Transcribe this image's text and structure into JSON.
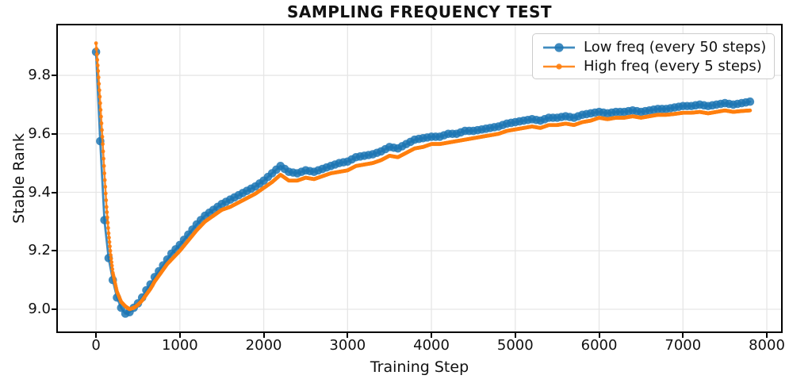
{
  "chart_data": {
    "type": "line",
    "title": "SAMPLING FREQUENCY TEST",
    "xlabel": "Training Step",
    "ylabel": "Stable Rank",
    "xlim": [
      -455,
      8170
    ],
    "ylim": [
      8.924,
      9.971
    ],
    "x_ticks": [
      0,
      1000,
      2000,
      3000,
      4000,
      5000,
      6000,
      7000,
      8000
    ],
    "x_tick_labels": [
      "0",
      "1000",
      "2000",
      "3000",
      "4000",
      "5000",
      "6000",
      "7000",
      "8000"
    ],
    "y_ticks": [
      9.0,
      9.2,
      9.4,
      9.6,
      9.8
    ],
    "y_tick_labels": [
      "9.0",
      "9.2",
      "9.4",
      "9.6",
      "9.8"
    ],
    "grid": true,
    "grid_color": "#e6e6e6",
    "legend_position": "upper right",
    "series": [
      {
        "name": "Low freq (every 50 steps)",
        "color": "#1f77b4",
        "alpha": 0.85,
        "line_width": 2.8,
        "marker": "o",
        "marker_radius": 5.3,
        "sample_interval": 50,
        "x_range": [
          0,
          7800
        ],
        "keypoints": [
          [
            0,
            9.88
          ],
          [
            50,
            9.575
          ],
          [
            100,
            9.305
          ],
          [
            150,
            9.175
          ],
          [
            200,
            9.1
          ],
          [
            250,
            9.04
          ],
          [
            300,
            9.005
          ],
          [
            350,
            8.985
          ],
          [
            400,
            8.99
          ],
          [
            450,
            9.005
          ],
          [
            500,
            9.02
          ],
          [
            550,
            9.04
          ],
          [
            600,
            9.065
          ],
          [
            650,
            9.085
          ],
          [
            700,
            9.11
          ],
          [
            750,
            9.13
          ],
          [
            800,
            9.15
          ],
          [
            850,
            9.17
          ],
          [
            900,
            9.19
          ],
          [
            950,
            9.205
          ],
          [
            1000,
            9.22
          ],
          [
            1100,
            9.255
          ],
          [
            1200,
            9.29
          ],
          [
            1300,
            9.32
          ],
          [
            1400,
            9.34
          ],
          [
            1500,
            9.36
          ],
          [
            1600,
            9.375
          ],
          [
            1700,
            9.39
          ],
          [
            1800,
            9.405
          ],
          [
            1900,
            9.42
          ],
          [
            2000,
            9.44
          ],
          [
            2100,
            9.465
          ],
          [
            2200,
            9.49
          ],
          [
            2300,
            9.47
          ],
          [
            2400,
            9.465
          ],
          [
            2500,
            9.475
          ],
          [
            2600,
            9.47
          ],
          [
            2700,
            9.48
          ],
          [
            2800,
            9.49
          ],
          [
            2900,
            9.5
          ],
          [
            3000,
            9.505
          ],
          [
            3100,
            9.52
          ],
          [
            3200,
            9.525
          ],
          [
            3300,
            9.53
          ],
          [
            3400,
            9.54
          ],
          [
            3500,
            9.555
          ],
          [
            3600,
            9.55
          ],
          [
            3700,
            9.565
          ],
          [
            3800,
            9.58
          ],
          [
            3900,
            9.585
          ],
          [
            4000,
            9.59
          ],
          [
            4100,
            9.59
          ],
          [
            4200,
            9.6
          ],
          [
            4300,
            9.6
          ],
          [
            4400,
            9.61
          ],
          [
            4500,
            9.61
          ],
          [
            4600,
            9.615
          ],
          [
            4700,
            9.62
          ],
          [
            4800,
            9.625
          ],
          [
            4900,
            9.635
          ],
          [
            5000,
            9.64
          ],
          [
            5100,
            9.645
          ],
          [
            5200,
            9.65
          ],
          [
            5300,
            9.645
          ],
          [
            5400,
            9.655
          ],
          [
            5500,
            9.655
          ],
          [
            5600,
            9.66
          ],
          [
            5700,
            9.655
          ],
          [
            5800,
            9.665
          ],
          [
            5900,
            9.67
          ],
          [
            6000,
            9.675
          ],
          [
            6100,
            9.67
          ],
          [
            6200,
            9.675
          ],
          [
            6300,
            9.675
          ],
          [
            6400,
            9.68
          ],
          [
            6500,
            9.675
          ],
          [
            6600,
            9.68
          ],
          [
            6700,
            9.685
          ],
          [
            6800,
            9.685
          ],
          [
            6900,
            9.69
          ],
          [
            7000,
            9.695
          ],
          [
            7100,
            9.695
          ],
          [
            7200,
            9.7
          ],
          [
            7300,
            9.695
          ],
          [
            7400,
            9.7
          ],
          [
            7500,
            9.705
          ],
          [
            7600,
            9.7
          ],
          [
            7700,
            9.705
          ],
          [
            7800,
            9.71
          ]
        ]
      },
      {
        "name": "High freq (every 5 steps)",
        "color": "#ff7f0e",
        "alpha": 0.9,
        "line_width": 2.5,
        "marker": "o",
        "marker_radius": 2.4,
        "sample_interval": 5,
        "x_range": [
          0,
          7800
        ],
        "keypoints": [
          [
            0,
            9.91
          ],
          [
            25,
            9.815
          ],
          [
            50,
            9.705
          ],
          [
            75,
            9.59
          ],
          [
            100,
            9.465
          ],
          [
            125,
            9.35
          ],
          [
            150,
            9.26
          ],
          [
            175,
            9.185
          ],
          [
            200,
            9.125
          ],
          [
            250,
            9.06
          ],
          [
            300,
            9.025
          ],
          [
            350,
            9.01
          ],
          [
            400,
            9.0
          ],
          [
            450,
            9.005
          ],
          [
            500,
            9.015
          ],
          [
            550,
            9.03
          ],
          [
            600,
            9.05
          ],
          [
            650,
            9.07
          ],
          [
            700,
            9.095
          ],
          [
            750,
            9.115
          ],
          [
            800,
            9.135
          ],
          [
            850,
            9.155
          ],
          [
            900,
            9.17
          ],
          [
            950,
            9.185
          ],
          [
            1000,
            9.2
          ],
          [
            1100,
            9.235
          ],
          [
            1200,
            9.27
          ],
          [
            1300,
            9.3
          ],
          [
            1400,
            9.32
          ],
          [
            1500,
            9.34
          ],
          [
            1600,
            9.35
          ],
          [
            1700,
            9.365
          ],
          [
            1800,
            9.38
          ],
          [
            1900,
            9.395
          ],
          [
            2000,
            9.415
          ],
          [
            2100,
            9.435
          ],
          [
            2200,
            9.46
          ],
          [
            2300,
            9.44
          ],
          [
            2400,
            9.44
          ],
          [
            2500,
            9.45
          ],
          [
            2600,
            9.445
          ],
          [
            2700,
            9.455
          ],
          [
            2800,
            9.465
          ],
          [
            2900,
            9.47
          ],
          [
            3000,
            9.475
          ],
          [
            3100,
            9.49
          ],
          [
            3200,
            9.495
          ],
          [
            3300,
            9.5
          ],
          [
            3400,
            9.51
          ],
          [
            3500,
            9.525
          ],
          [
            3600,
            9.52
          ],
          [
            3700,
            9.535
          ],
          [
            3800,
            9.55
          ],
          [
            3900,
            9.555
          ],
          [
            4000,
            9.565
          ],
          [
            4100,
            9.565
          ],
          [
            4200,
            9.57
          ],
          [
            4300,
            9.575
          ],
          [
            4400,
            9.58
          ],
          [
            4500,
            9.585
          ],
          [
            4600,
            9.59
          ],
          [
            4700,
            9.595
          ],
          [
            4800,
            9.6
          ],
          [
            4900,
            9.61
          ],
          [
            5000,
            9.615
          ],
          [
            5100,
            9.62
          ],
          [
            5200,
            9.625
          ],
          [
            5300,
            9.62
          ],
          [
            5400,
            9.63
          ],
          [
            5500,
            9.63
          ],
          [
            5600,
            9.635
          ],
          [
            5700,
            9.63
          ],
          [
            5800,
            9.64
          ],
          [
            5900,
            9.645
          ],
          [
            6000,
            9.655
          ],
          [
            6100,
            9.65
          ],
          [
            6200,
            9.655
          ],
          [
            6300,
            9.655
          ],
          [
            6400,
            9.66
          ],
          [
            6500,
            9.655
          ],
          [
            6600,
            9.66
          ],
          [
            6700,
            9.665
          ],
          [
            6800,
            9.665
          ],
          [
            6900,
            9.668
          ],
          [
            7000,
            9.672
          ],
          [
            7100,
            9.672
          ],
          [
            7200,
            9.675
          ],
          [
            7300,
            9.67
          ],
          [
            7400,
            9.675
          ],
          [
            7500,
            9.68
          ],
          [
            7600,
            9.675
          ],
          [
            7700,
            9.678
          ],
          [
            7800,
            9.68
          ]
        ]
      }
    ]
  }
}
